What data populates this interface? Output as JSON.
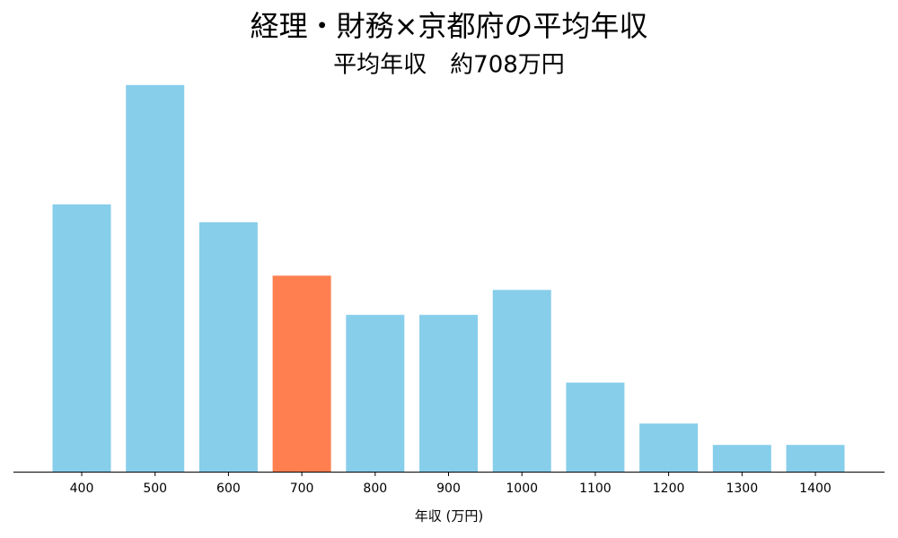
{
  "chart_data": {
    "type": "bar",
    "title": "経理・財務×京都府の平均年収",
    "subtitle": "平均年収　約708万円",
    "xlabel": "年収 (万円)",
    "categories": [
      "400",
      "500",
      "600",
      "700",
      "800",
      "900",
      "1000",
      "1100",
      "1200",
      "1300",
      "1400"
    ],
    "values": [
      15.0,
      21.7,
      14.0,
      11.0,
      8.8,
      8.8,
      10.2,
      5.0,
      2.7,
      1.5,
      1.5
    ],
    "colors": [
      "#87ceeb",
      "#87ceeb",
      "#87ceeb",
      "#ff7f50",
      "#87ceeb",
      "#87ceeb",
      "#87ceeb",
      "#87ceeb",
      "#87ceeb",
      "#87ceeb",
      "#87ceeb"
    ],
    "ylim": [
      0,
      23
    ]
  }
}
